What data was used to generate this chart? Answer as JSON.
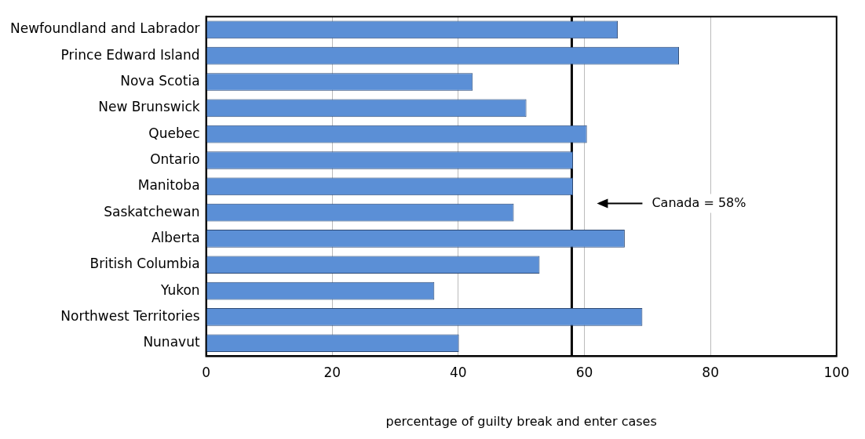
{
  "chart_data": {
    "type": "bar",
    "orientation": "horizontal",
    "xlabel": "percentage of guilty break and enter cases",
    "categories": [
      "Newfoundland and Labrador",
      "Prince Edward Island",
      "Nova Scotia",
      "New Brunswick",
      "Quebec",
      "Ontario",
      "Manitoba",
      "Saskatchewan",
      "Alberta",
      "British Columbia",
      "Yukon",
      "Northwest Territories",
      "Nunavut"
    ],
    "values": [
      65.3,
      75,
      42.3,
      50.8,
      60.4,
      58.2,
      58.2,
      48.8,
      66.4,
      52.9,
      36.2,
      69.2,
      40.1
    ],
    "color": "#5b8fd6",
    "xlim": [
      0,
      100
    ],
    "xticks": [
      0,
      20,
      40,
      60,
      80,
      100
    ],
    "grid": "x",
    "legend": false,
    "ref_lines": [
      {
        "axis": "x",
        "value": 58,
        "label": "Canada = 58%",
        "color": "#000000"
      }
    ]
  }
}
